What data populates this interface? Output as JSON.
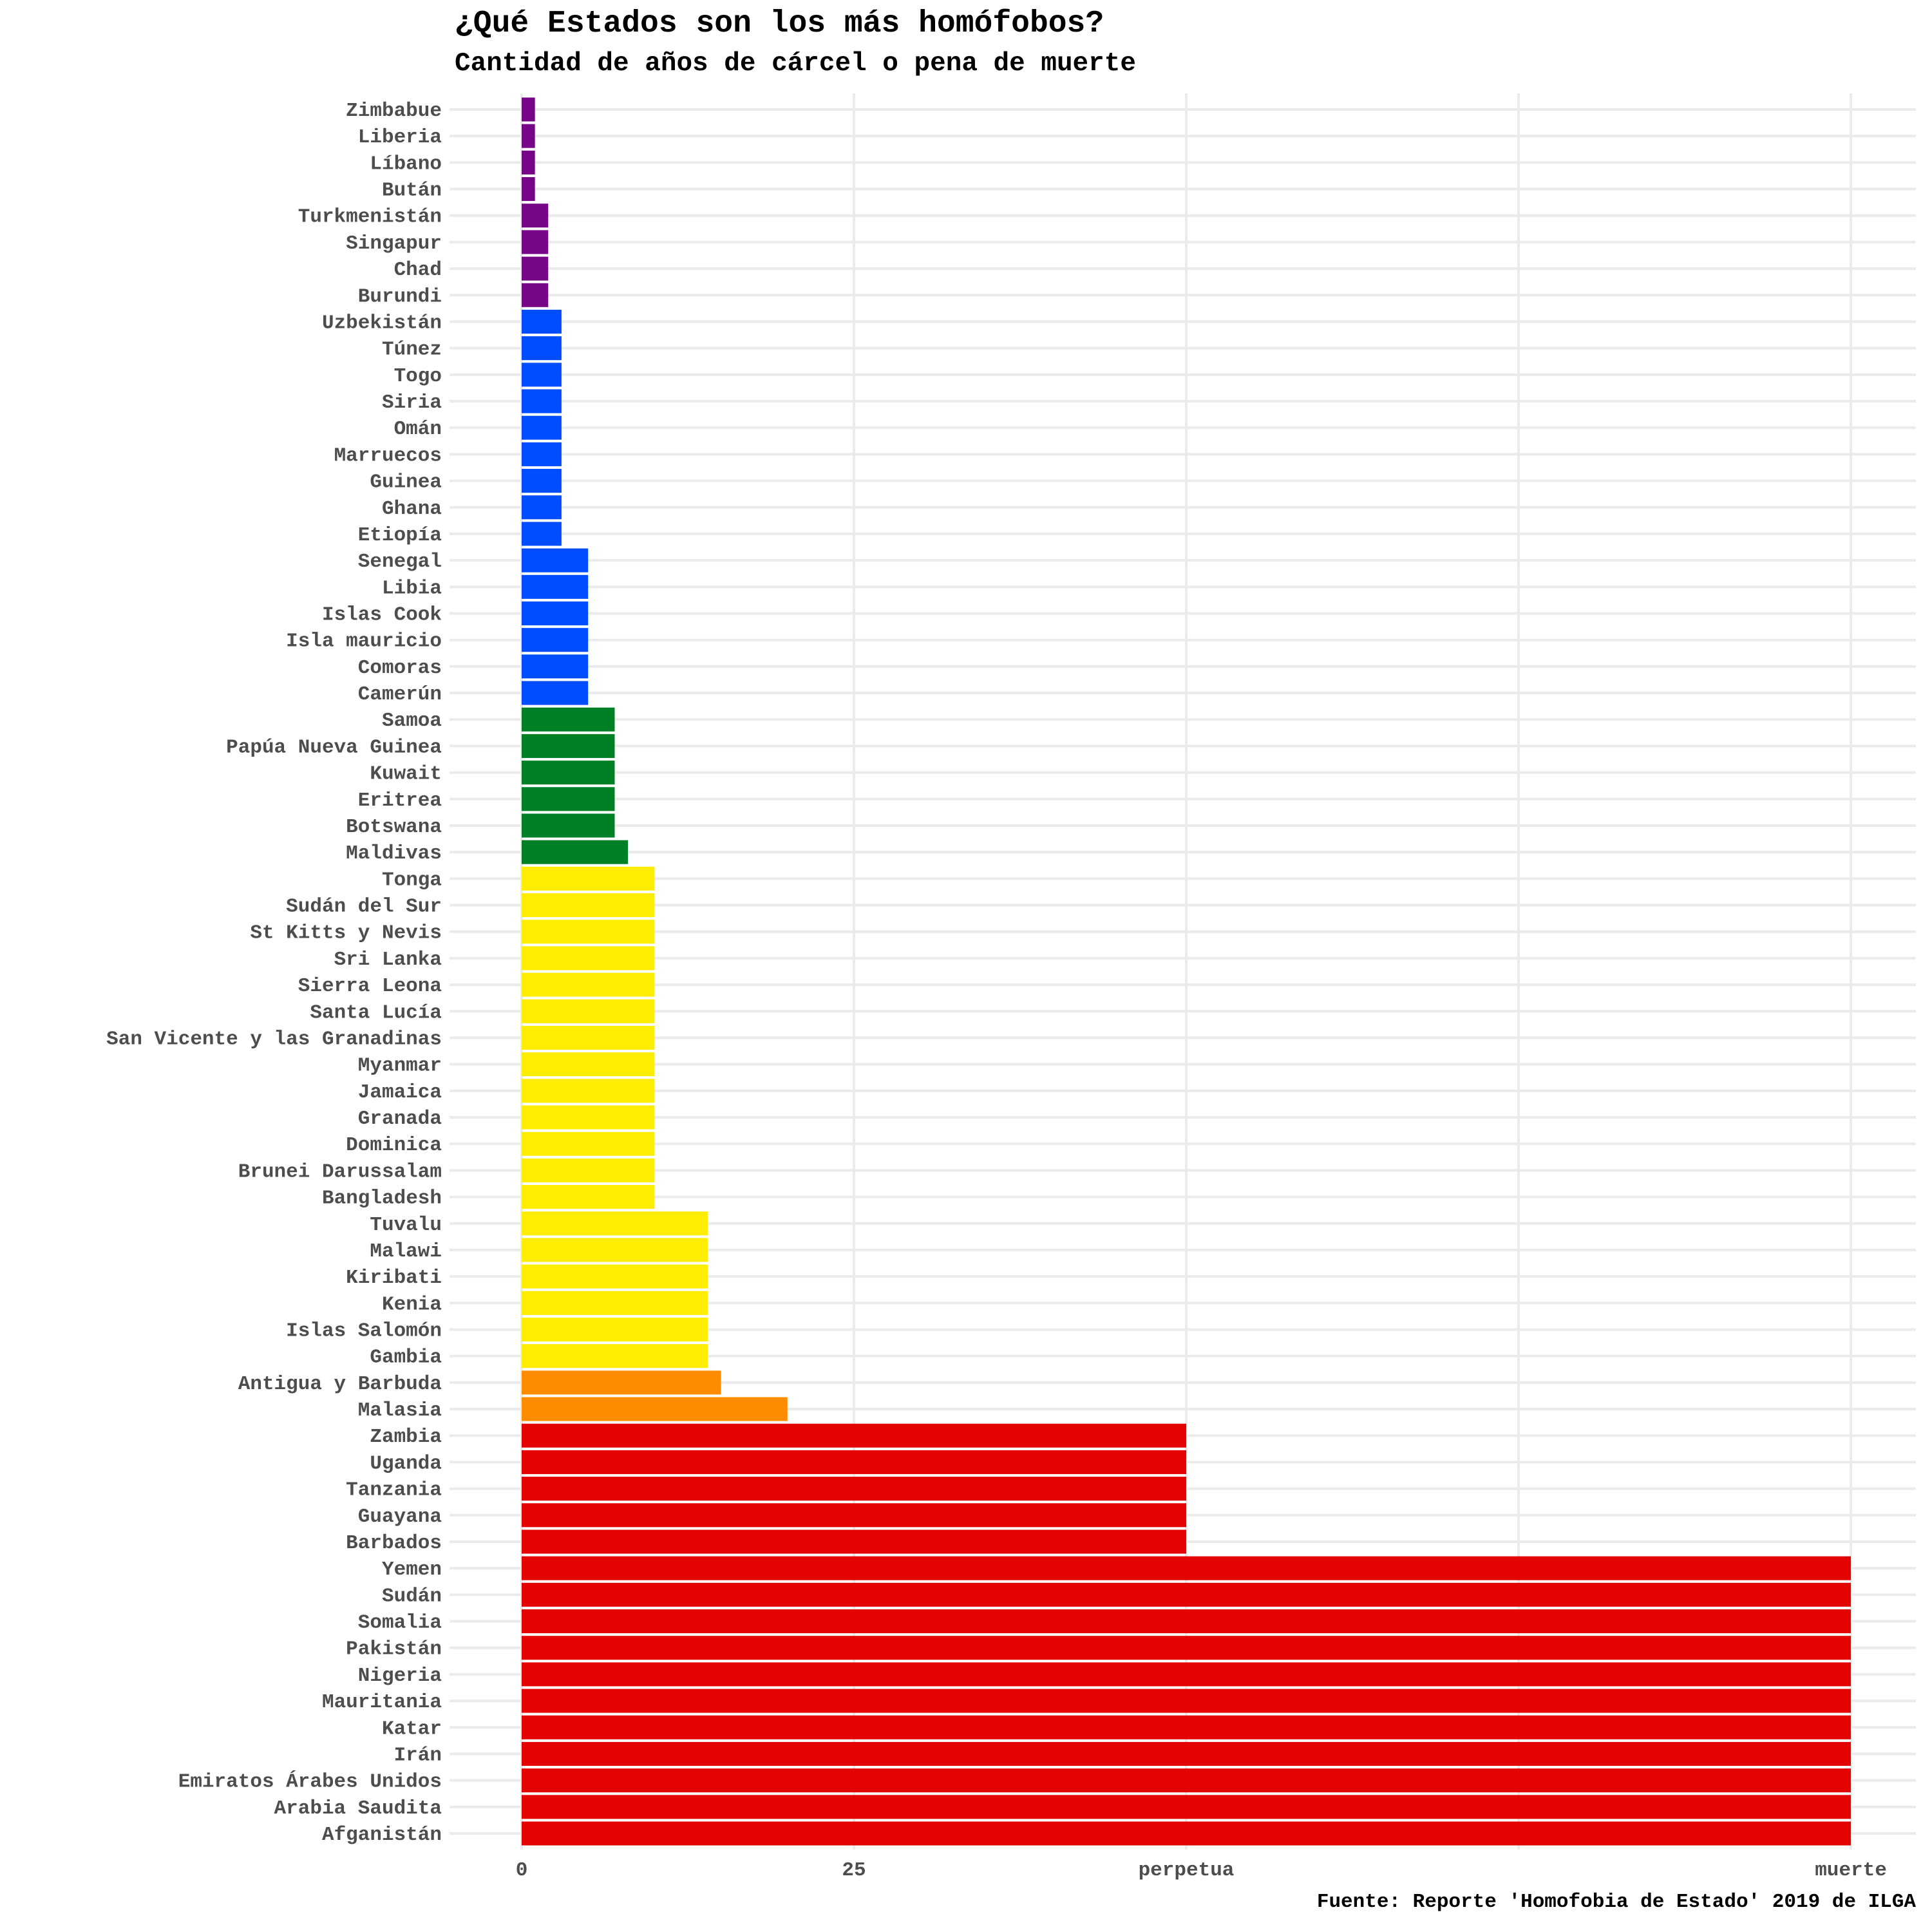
{
  "chart_data": {
    "type": "bar",
    "orientation": "horizontal",
    "title": "¿Qué Estados son los más homófobos?",
    "subtitle": "Cantidad de años de cárcel o pena de muerte",
    "caption": "Fuente: Reporte 'Homofobia de Estado' 2019 de ILGA",
    "xlabel": "",
    "ylabel": "",
    "xlim": [
      0,
      100
    ],
    "x_ticks": [
      {
        "value": 0,
        "label": "0"
      },
      {
        "value": 25,
        "label": "25"
      },
      {
        "value": 50,
        "label": "perpetua"
      },
      {
        "value": 100,
        "label": "muerte"
      }
    ],
    "x_gridlines": [
      0,
      25,
      50,
      75,
      100
    ],
    "grid": true,
    "legend": "none",
    "categories": [
      "Zimbabue",
      "Liberia",
      "Líbano",
      "Bután",
      "Turkmenistán",
      "Singapur",
      "Chad",
      "Burundi",
      "Uzbekistán",
      "Túnez",
      "Togo",
      "Siria",
      "Omán",
      "Marruecos",
      "Guinea",
      "Ghana",
      "Etiopía",
      "Senegal",
      "Libia",
      "Islas Cook",
      "Isla mauricio",
      "Comoras",
      "Camerún",
      "Samoa",
      "Papúa Nueva Guinea",
      "Kuwait",
      "Eritrea",
      "Botswana",
      "Maldivas",
      "Tonga",
      "Sudán del Sur",
      "St Kitts y Nevis",
      "Sri Lanka",
      "Sierra Leona",
      "Santa Lucía",
      "San Vicente y las Granadinas",
      "Myanmar",
      "Jamaica",
      "Granada",
      "Dominica",
      "Brunei Darussalam",
      "Bangladesh",
      "Tuvalu",
      "Malawi",
      "Kiribati",
      "Kenia",
      "Islas Salomón",
      "Gambia",
      "Antigua y Barbuda",
      "Malasia",
      "Zambia",
      "Uganda",
      "Tanzania",
      "Guayana",
      "Barbados",
      "Yemen",
      "Sudán",
      "Somalia",
      "Pakistán",
      "Nigeria",
      "Mauritania",
      "Katar",
      "Irán",
      "Emiratos Árabes Unidos",
      "Arabia Saudita",
      "Afganistán"
    ],
    "values": [
      1,
      1,
      1,
      1,
      2,
      2,
      2,
      2,
      3,
      3,
      3,
      3,
      3,
      3,
      3,
      3,
      3,
      5,
      5,
      5,
      5,
      5,
      5,
      7,
      7,
      7,
      7,
      7,
      8,
      10,
      10,
      10,
      10,
      10,
      10,
      10,
      10,
      10,
      10,
      10,
      10,
      10,
      14,
      14,
      14,
      14,
      14,
      14,
      15,
      20,
      50,
      50,
      50,
      50,
      50,
      100,
      100,
      100,
      100,
      100,
      100,
      100,
      100,
      100,
      100,
      100
    ],
    "color_groups": [
      {
        "max": 2,
        "color": "#750787"
      },
      {
        "max": 5,
        "color": "#004dff"
      },
      {
        "max": 8,
        "color": "#008026"
      },
      {
        "max": 14,
        "color": "#ffed00"
      },
      {
        "max": 20,
        "color": "#ff8c00"
      },
      {
        "max": 100,
        "color": "#e40303"
      }
    ]
  }
}
